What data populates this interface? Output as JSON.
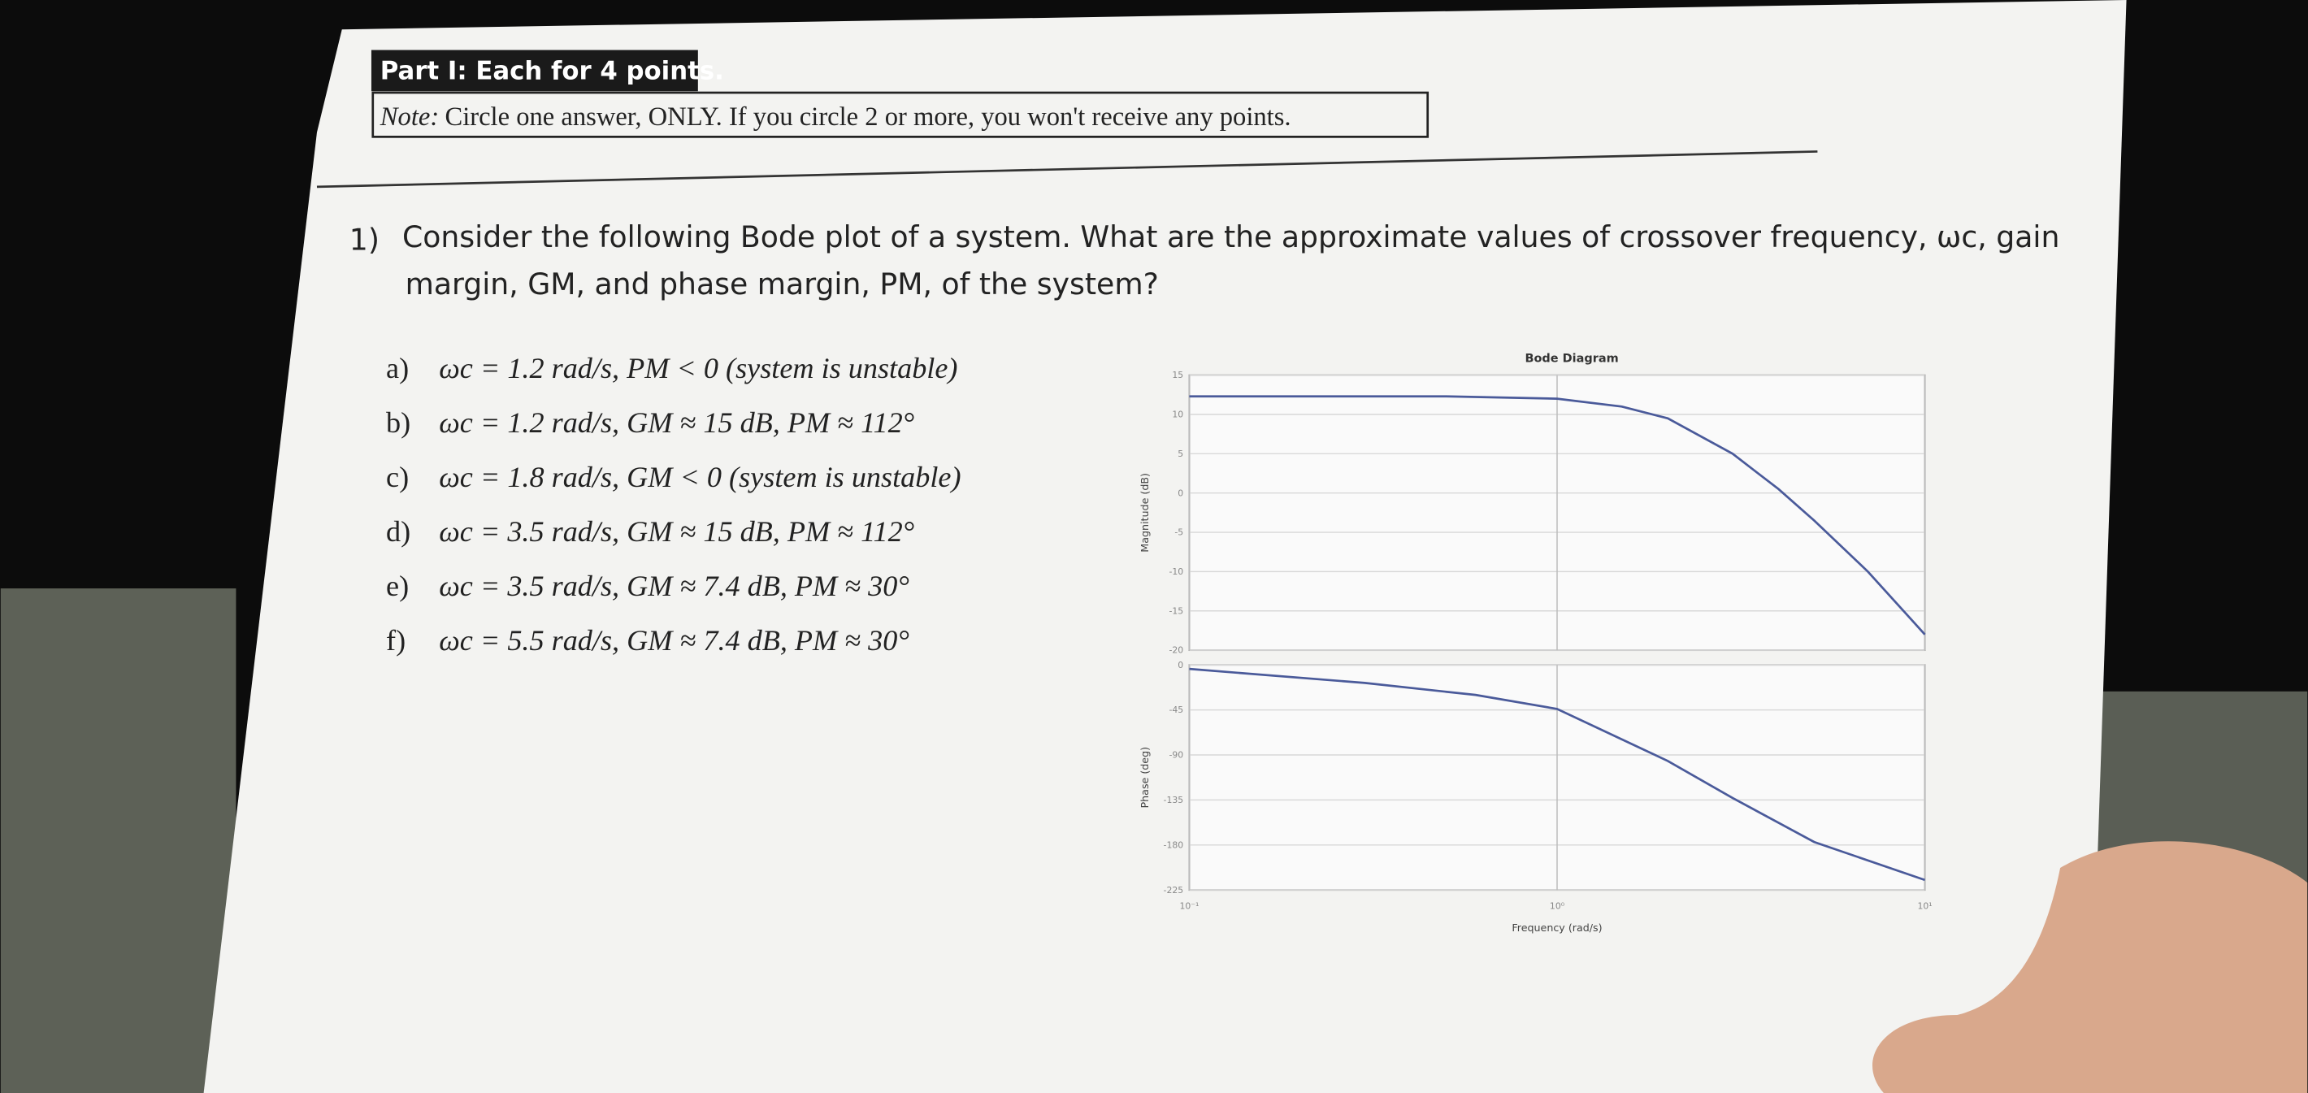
{
  "header": {
    "title": "Part I: Each for 4 points.",
    "note_label": "Note:",
    "note": "Circle one answer, ONLY. If you circle 2 or more, you won't receive any points."
  },
  "question": {
    "number": "1)",
    "lines": [
      "Consider the following Bode plot of a system. What are the approximate values of crossover frequency, ωc, gain",
      "margin, GM, and phase margin, PM, of the system?"
    ]
  },
  "options": [
    {
      "label": "a)",
      "text": "ωc = 1.2 rad/s, PM < 0 (system is unstable)"
    },
    {
      "label": "b)",
      "text": "ωc = 1.2 rad/s, GM ≈ 15 dB, PM ≈ 112°"
    },
    {
      "label": "c)",
      "text": "ωc = 1.8 rad/s, GM < 0 (system is unstable)"
    },
    {
      "label": "d)",
      "text": "ωc = 3.5 rad/s, GM ≈ 15 dB, PM ≈ 112°"
    },
    {
      "label": "e)",
      "text": "ωc = 3.5 rad/s, GM ≈ 7.4 dB, PM ≈ 30°"
    },
    {
      "label": "f)",
      "text": "ωc = 5.5 rad/s, GM ≈ 7.4 dB, PM ≈ 30°"
    }
  ],
  "bode": {
    "title": "Bode Diagram",
    "xlabel": "Frequency (rad/s)",
    "xscale": "log",
    "xlim": [
      0.1,
      10
    ],
    "xticks": [
      {
        "value": 0.1,
        "label": "10⁻¹"
      },
      {
        "value": 1,
        "label": "10⁰"
      },
      {
        "value": 10,
        "label": "10¹"
      }
    ],
    "grid": true,
    "color": "#4a5a9a",
    "magnitude": {
      "ylabel": "Magnitude (dB)",
      "ylim": [
        -20,
        15
      ],
      "yticks": [
        -20,
        -15,
        -10,
        -5,
        0,
        5,
        10,
        15
      ],
      "x": [
        0.1,
        0.2,
        0.5,
        1,
        1.5,
        2,
        3,
        4,
        5,
        7,
        10
      ],
      "values": [
        12.3,
        12.3,
        12.3,
        12,
        11,
        9.5,
        5,
        0.5,
        -3.5,
        -10,
        -18
      ]
    },
    "phase": {
      "ylabel": "Phase (deg)",
      "ylim": [
        -225,
        0
      ],
      "yticks": [
        -225,
        -180,
        -135,
        -90,
        -45,
        0
      ],
      "x": [
        0.1,
        0.3,
        0.6,
        1,
        2,
        3,
        5,
        10
      ],
      "values": [
        -4,
        -18,
        -30,
        -44,
        -96,
        -133,
        -177,
        -215
      ]
    }
  }
}
